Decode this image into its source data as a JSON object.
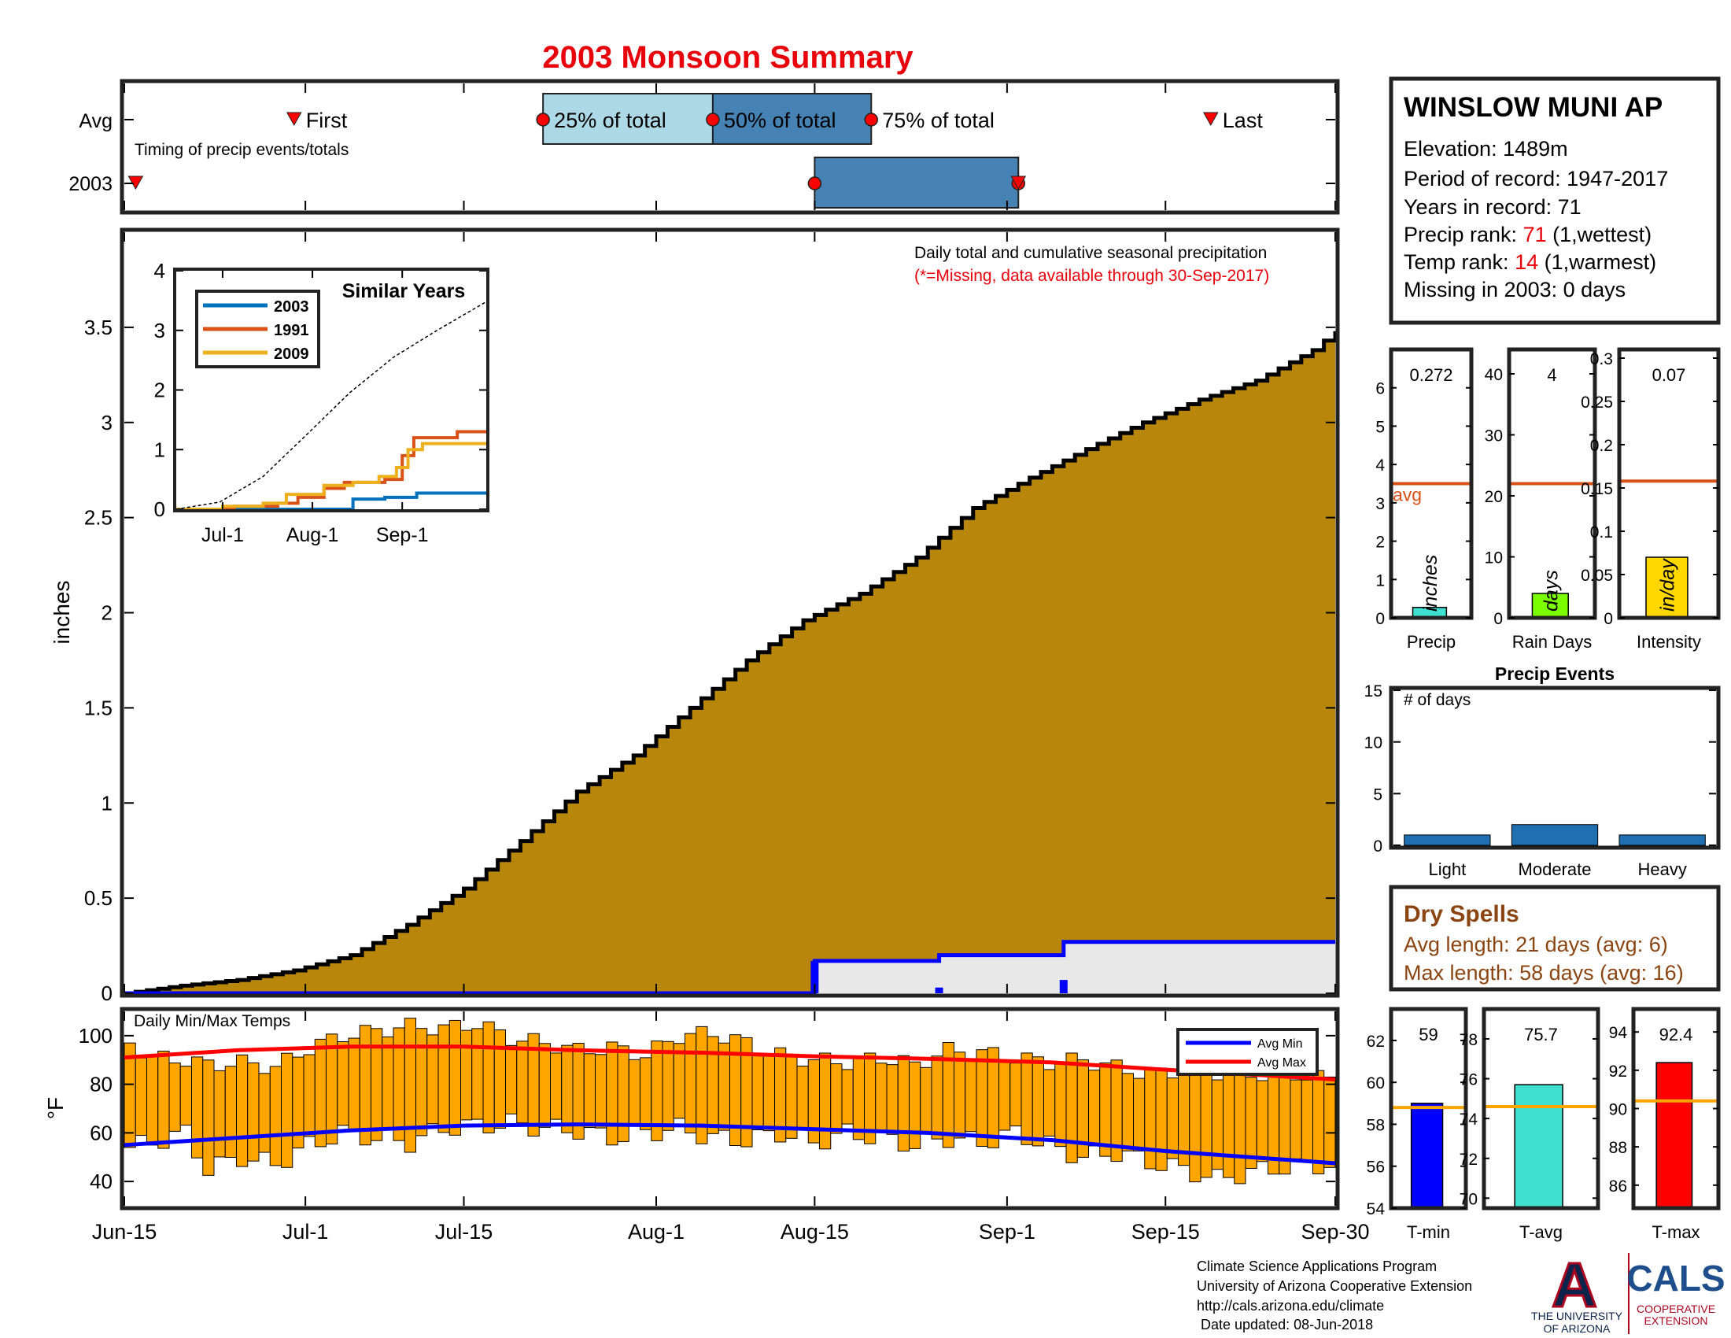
{
  "title": "2003 Monsoon Summary",
  "colors": {
    "title": "#e8000b",
    "cumulative_fill": "#b8860b",
    "dry_spell_line": "#0000ff",
    "dry_spell_fill": "#e8e8e8",
    "bar_25": "#add8e6",
    "bar_50": "#4682b4",
    "marker_red": "#ff0000",
    "avg_line": "#d95319",
    "temp_bar": "#ffa500",
    "avg_max": "#ff0000",
    "avg_min": "#0000ff",
    "similar_2003": "#0072bd",
    "similar_1991": "#d95319",
    "similar_2009": "#edb120",
    "precip_bar": "#40e0d0",
    "raindays_bar": "#7cfc00",
    "intensity_bar": "#ffd700",
    "tmin_bar": "#0000ff",
    "tavg_bar": "#40e0d0",
    "tmax_bar": "#ff0000",
    "avg_temp_line": "#ffa500",
    "events_bar": "#1f6fb2",
    "dry_spells_text": "#8b4513",
    "ua_blue": "#0c234b",
    "ua_red": "#ab0520"
  },
  "timing": {
    "row_labels": [
      "Avg",
      "2003"
    ],
    "subtitle": "Timing of precip events/totals",
    "labels": {
      "first": "First",
      "p25": "25% of total",
      "p50": "50% of total",
      "p75": "75% of total",
      "last": "Last"
    },
    "avg": {
      "first": "2003-06-30",
      "p25": "2003-07-22",
      "p50": "2003-08-06",
      "p75": "2003-08-20",
      "last": "2003-09-19"
    },
    "year": {
      "first": "2003-06-16",
      "p25": "2003-08-15",
      "p75": "2003-09-02"
    }
  },
  "station": {
    "name": "WINSLOW MUNI AP",
    "elevation": "Elevation: 1489m",
    "period": "Period of record: 1947-2017",
    "years": "Years in record: 71",
    "precip_rank_label": "Precip rank: ",
    "precip_rank_value": "71",
    "precip_rank_note": " (1,wettest)",
    "temp_rank_label": "Temp rank: ",
    "temp_rank_value": "14",
    "temp_rank_note": " (1,warmest)",
    "missing": "Missing in 2003: 0 days"
  },
  "chart_data": [
    {
      "name": "cumulative",
      "type": "area",
      "ylabel": "inches",
      "ylim": [
        0,
        4
      ],
      "yticks": [
        0,
        0.5,
        1,
        1.5,
        2,
        2.5,
        3,
        3.5
      ],
      "annotation": "Daily total and cumulative seasonal precipitation",
      "note": "(*=Missing, data available through 30-Sep-2017)",
      "x_ticks": [
        {
          "date": "2003-06-15",
          "label": "Jun-15"
        },
        {
          "date": "2003-07-01",
          "label": "Jul-1"
        },
        {
          "date": "2003-07-15",
          "label": "Jul-15"
        },
        {
          "date": "2003-08-01",
          "label": "Aug-1"
        },
        {
          "date": "2003-08-15",
          "label": "Aug-15"
        },
        {
          "date": "2003-09-01",
          "label": "Sep-1"
        },
        {
          "date": "2003-09-15",
          "label": "Sep-15"
        },
        {
          "date": "2003-09-30",
          "label": "Sep-30"
        }
      ],
      "series": [
        {
          "label": "average cumulative precipitation",
          "points": [
            [
              "2003-06-15",
              0.0
            ],
            [
              "2003-06-20",
              0.04
            ],
            [
              "2003-06-25",
              0.07
            ],
            [
              "2003-06-30",
              0.12
            ],
            [
              "2003-07-05",
              0.2
            ],
            [
              "2003-07-10",
              0.36
            ],
            [
              "2003-07-15",
              0.55
            ],
            [
              "2003-07-20",
              0.8
            ],
            [
              "2003-07-25",
              1.06
            ],
            [
              "2003-07-30",
              1.25
            ],
            [
              "2003-08-04",
              1.5
            ],
            [
              "2003-08-09",
              1.75
            ],
            [
              "2003-08-14",
              1.96
            ],
            [
              "2003-08-19",
              2.1
            ],
            [
              "2003-08-24",
              2.29
            ],
            [
              "2003-08-29",
              2.55
            ],
            [
              "2003-09-03",
              2.71
            ],
            [
              "2003-09-08",
              2.86
            ],
            [
              "2003-09-13",
              3.0
            ],
            [
              "2003-09-18",
              3.12
            ],
            [
              "2003-09-23",
              3.22
            ],
            [
              "2003-09-28",
              3.38
            ],
            [
              "2003-09-30",
              3.48
            ]
          ]
        },
        {
          "label": "2003 cumulative precipitation",
          "points": [
            [
              "2003-06-15",
              0.0
            ],
            [
              "2003-08-14",
              0.0
            ],
            [
              "2003-08-15",
              0.17
            ],
            [
              "2003-08-25",
              0.17
            ],
            [
              "2003-08-26",
              0.2
            ],
            [
              "2003-09-05",
              0.2
            ],
            [
              "2003-09-06",
              0.27
            ],
            [
              "2003-09-30",
              0.27
            ]
          ]
        }
      ],
      "daily_bars": [
        {
          "date": "2003-08-15",
          "value": 0.17
        },
        {
          "date": "2003-08-26",
          "value": 0.03
        },
        {
          "date": "2003-09-06",
          "value": 0.07
        }
      ]
    },
    {
      "name": "similar_years",
      "type": "line",
      "title": "Similar Years",
      "ylim": [
        0,
        4
      ],
      "yticks": [
        0,
        1,
        2,
        3,
        4
      ],
      "x_ticks": [
        {
          "date": "2003-07-01",
          "label": "Jul-1"
        },
        {
          "date": "2003-08-01",
          "label": "Aug-1"
        },
        {
          "date": "2003-09-01",
          "label": "Sep-1"
        }
      ],
      "series": [
        {
          "name": "2003",
          "points": [
            [
              "2003-06-15",
              0.0
            ],
            [
              "2003-08-14",
              0.0
            ],
            [
              "2003-08-15",
              0.17
            ],
            [
              "2003-08-26",
              0.2
            ],
            [
              "2003-09-06",
              0.27
            ],
            [
              "2003-09-30",
              0.27
            ]
          ]
        },
        {
          "name": "1991",
          "points": [
            [
              "2003-06-15",
              0.0
            ],
            [
              "2003-07-05",
              0.05
            ],
            [
              "2003-07-20",
              0.1
            ],
            [
              "2003-07-27",
              0.2
            ],
            [
              "2003-08-05",
              0.35
            ],
            [
              "2003-08-12",
              0.45
            ],
            [
              "2003-08-26",
              0.5
            ],
            [
              "2003-09-01",
              0.9
            ],
            [
              "2003-09-05",
              1.2
            ],
            [
              "2003-09-20",
              1.3
            ],
            [
              "2003-09-30",
              1.3
            ]
          ]
        },
        {
          "name": "2009",
          "points": [
            [
              "2003-06-15",
              0.0
            ],
            [
              "2003-07-01",
              0.05
            ],
            [
              "2003-07-15",
              0.1
            ],
            [
              "2003-07-23",
              0.25
            ],
            [
              "2003-08-05",
              0.4
            ],
            [
              "2003-08-15",
              0.45
            ],
            [
              "2003-08-24",
              0.55
            ],
            [
              "2003-08-30",
              0.7
            ],
            [
              "2003-09-03",
              1.0
            ],
            [
              "2003-09-08",
              1.1
            ],
            [
              "2003-09-30",
              1.1
            ]
          ]
        },
        {
          "name": "average",
          "style": "dashed",
          "points": [
            [
              "2003-06-15",
              0.0
            ],
            [
              "2003-06-30",
              0.12
            ],
            [
              "2003-07-15",
              0.55
            ],
            [
              "2003-07-30",
              1.25
            ],
            [
              "2003-08-14",
              1.96
            ],
            [
              "2003-08-29",
              2.55
            ],
            [
              "2003-09-13",
              3.0
            ],
            [
              "2003-09-30",
              3.48
            ]
          ]
        }
      ]
    },
    {
      "name": "temperatures",
      "type": "bar",
      "title": "Daily Min/Max Temps",
      "ylabel": "°F",
      "ylim": [
        30,
        110
      ],
      "yticks": [
        40,
        60,
        80,
        100
      ],
      "legend": [
        "Avg Min",
        "Avg Max"
      ],
      "legend_position": "top-right",
      "series": [
        {
          "name": "daily range",
          "points": [
            [
              "2003-06-15",
              54,
              97
            ],
            [
              "2003-06-17",
              56,
              91
            ],
            [
              "2003-06-20",
              60,
              90
            ],
            [
              "2003-06-22",
              45,
              88
            ],
            [
              "2003-06-25",
              50,
              89
            ],
            [
              "2003-06-28",
              47,
              87
            ],
            [
              "2003-07-01",
              55,
              95
            ],
            [
              "2003-07-04",
              60,
              100
            ],
            [
              "2003-07-07",
              58,
              102
            ],
            [
              "2003-07-10",
              56,
              104
            ],
            [
              "2003-07-13",
              62,
              103
            ],
            [
              "2003-07-16",
              63,
              105
            ],
            [
              "2003-07-19",
              64,
              99
            ],
            [
              "2003-07-22",
              62,
              97
            ],
            [
              "2003-07-25",
              61,
              94
            ],
            [
              "2003-07-28",
              58,
              95
            ],
            [
              "2003-07-31",
              60,
              92
            ],
            [
              "2003-08-03",
              62,
              100
            ],
            [
              "2003-08-06",
              58,
              101
            ],
            [
              "2003-08-09",
              57,
              97
            ],
            [
              "2003-08-12",
              60,
              92
            ],
            [
              "2003-08-15",
              56,
              90
            ],
            [
              "2003-08-18",
              60,
              89
            ],
            [
              "2003-08-21",
              58,
              91
            ],
            [
              "2003-08-24",
              55,
              88
            ],
            [
              "2003-08-27",
              58,
              94
            ],
            [
              "2003-08-30",
              56,
              93
            ],
            [
              "2003-09-02",
              60,
              91
            ],
            [
              "2003-09-05",
              55,
              89
            ],
            [
              "2003-09-08",
              50,
              90
            ],
            [
              "2003-09-11",
              52,
              87
            ],
            [
              "2003-09-14",
              48,
              84
            ],
            [
              "2003-09-17",
              45,
              86
            ],
            [
              "2003-09-20",
              41,
              85
            ],
            [
              "2003-09-23",
              44,
              84
            ],
            [
              "2003-09-26",
              46,
              85
            ],
            [
              "2003-09-30",
              47,
              82
            ]
          ]
        },
        {
          "name": "Avg Max",
          "points": [
            [
              "2003-06-15",
              91
            ],
            [
              "2003-06-25",
              94
            ],
            [
              "2003-07-05",
              95.5
            ],
            [
              "2003-07-15",
              95.5
            ],
            [
              "2003-07-25",
              94
            ],
            [
              "2003-08-05",
              93
            ],
            [
              "2003-08-15",
              91.5
            ],
            [
              "2003-08-25",
              90.5
            ],
            [
              "2003-09-05",
              89
            ],
            [
              "2003-09-15",
              86
            ],
            [
              "2003-09-30",
              82
            ]
          ]
        },
        {
          "name": "Avg Min",
          "points": [
            [
              "2003-06-15",
              55
            ],
            [
              "2003-06-25",
              58
            ],
            [
              "2003-07-05",
              61
            ],
            [
              "2003-07-15",
              63
            ],
            [
              "2003-07-25",
              63.5
            ],
            [
              "2003-08-05",
              63
            ],
            [
              "2003-08-15",
              61.5
            ],
            [
              "2003-08-25",
              60
            ],
            [
              "2003-09-05",
              57
            ],
            [
              "2003-09-15",
              52.5
            ],
            [
              "2003-09-30",
              47.5
            ]
          ]
        }
      ]
    },
    {
      "name": "precip_stats",
      "type": "bar",
      "panels": [
        {
          "category": "Precip",
          "unit": "inches",
          "value": 0.272,
          "display": "0.272",
          "avg": 3.5,
          "avg_label": "avg",
          "ylim": [
            0,
            7
          ],
          "yticks": [
            0,
            1,
            2,
            3,
            4,
            5,
            6
          ]
        },
        {
          "category": "Rain Days",
          "unit": "days",
          "value": 4,
          "display": "4",
          "avg": 22,
          "ylim": [
            0,
            44
          ],
          "yticks": [
            0,
            10,
            20,
            30,
            40
          ]
        },
        {
          "category": "Intensity",
          "unit": "in/day",
          "value": 0.07,
          "display": "0.07",
          "avg": 0.158,
          "ylim": [
            0,
            0.31
          ],
          "yticks": [
            0,
            0.05,
            0.1,
            0.15,
            0.2,
            0.25,
            0.3
          ]
        }
      ]
    },
    {
      "name": "precip_events",
      "type": "bar",
      "title": "Precip Events",
      "ylabel": "# of days",
      "ylim": [
        0,
        15
      ],
      "yticks": [
        0,
        5,
        10,
        15
      ],
      "categories": [
        "Light",
        "Moderate",
        "Heavy"
      ],
      "values": [
        1,
        2,
        1
      ]
    },
    {
      "name": "temp_stats",
      "type": "bar",
      "panels": [
        {
          "category": "T-min",
          "value": 59,
          "display": "59",
          "avg": 58.8,
          "ylim": [
            54,
            63.5
          ],
          "yticks": [
            54,
            56,
            58,
            60,
            62
          ]
        },
        {
          "category": "T-avg",
          "value": 75.7,
          "display": "75.7",
          "avg": 74.6,
          "ylim": [
            69.5,
            79.5
          ],
          "yticks": [
            70,
            72,
            74,
            76,
            78
          ]
        },
        {
          "category": "T-max",
          "value": 92.4,
          "display": "92.4",
          "avg": 90.4,
          "ylim": [
            84.8,
            95.2
          ],
          "yticks": [
            86,
            88,
            90,
            92,
            94
          ]
        }
      ]
    }
  ],
  "dry_spells": {
    "title": "Dry Spells",
    "avg_length": "Avg length: 21 days (avg: 6)",
    "max_length": "Max length: 58 days (avg: 16)"
  },
  "footer": {
    "lines": [
      "Climate Science Applications Program",
      "University of Arizona Cooperative Extension",
      "http://cals.arizona.edu/climate",
      " Date updated: 08-Jun-2018"
    ],
    "ua_logo_letter": "A",
    "ua_name_1": "THE UNIVERSITY",
    "ua_name_2": "OF ARIZONA",
    "cals": "CALS",
    "cals_sub_1": "COOPERATIVE",
    "cals_sub_2": "EXTENSION"
  }
}
